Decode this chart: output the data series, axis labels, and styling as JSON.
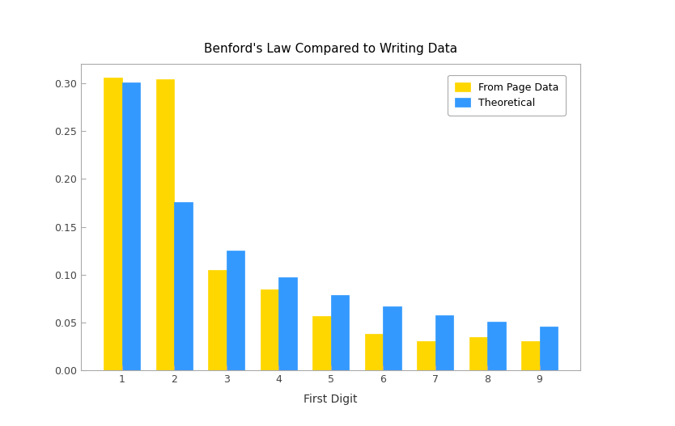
{
  "title": "Benford's Law Compared to Writing Data",
  "xlabel": "First Digit",
  "ylabel": "",
  "categories": [
    1,
    2,
    3,
    4,
    5,
    6,
    7,
    8,
    9
  ],
  "from_page_data": [
    0.306,
    0.304,
    0.105,
    0.085,
    0.057,
    0.038,
    0.031,
    0.035,
    0.031
  ],
  "theoretical": [
    0.301,
    0.176,
    0.125,
    0.097,
    0.079,
    0.067,
    0.058,
    0.051,
    0.046
  ],
  "color_page": "#FFD700",
  "color_theoretical": "#3399FF",
  "ylim": [
    0,
    0.32
  ],
  "yticks": [
    0.0,
    0.05,
    0.1,
    0.15,
    0.2,
    0.25,
    0.3
  ],
  "legend_labels": [
    "From Page Data",
    "Theoretical"
  ],
  "background_color": "#FFFFFF",
  "title_fontsize": 11,
  "bar_width": 0.35,
  "legend_loc": "upper right"
}
